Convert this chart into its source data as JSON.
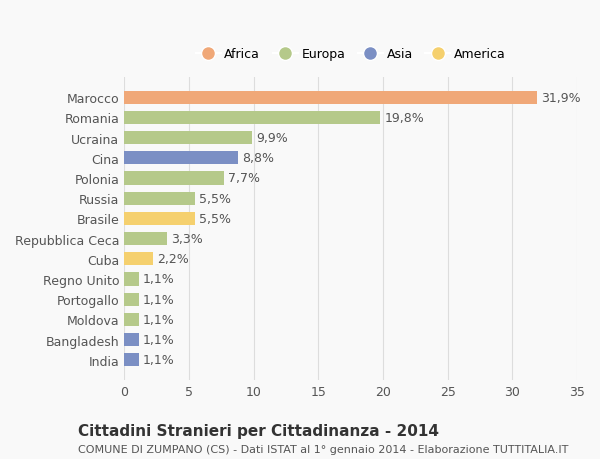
{
  "categories": [
    "Marocco",
    "Romania",
    "Ucraina",
    "Cina",
    "Polonia",
    "Russia",
    "Brasile",
    "Repubblica Ceca",
    "Cuba",
    "Regno Unito",
    "Portogallo",
    "Moldova",
    "Bangladesh",
    "India"
  ],
  "values": [
    31.9,
    19.8,
    9.9,
    8.8,
    7.7,
    5.5,
    5.5,
    3.3,
    2.2,
    1.1,
    1.1,
    1.1,
    1.1,
    1.1
  ],
  "labels": [
    "31,9%",
    "19,8%",
    "9,9%",
    "8,8%",
    "7,7%",
    "5,5%",
    "5,5%",
    "3,3%",
    "2,2%",
    "1,1%",
    "1,1%",
    "1,1%",
    "1,1%",
    "1,1%"
  ],
  "bar_colors": [
    "#f0a878",
    "#b5c98a",
    "#b5c98a",
    "#7b8fc4",
    "#b5c98a",
    "#b5c98a",
    "#f5d06e",
    "#b5c98a",
    "#f5d06e",
    "#b5c98a",
    "#b5c98a",
    "#b5c98a",
    "#7b8fc4",
    "#7b8fc4"
  ],
  "legend_labels": [
    "Africa",
    "Europa",
    "Asia",
    "America"
  ],
  "legend_colors": [
    "#f0a878",
    "#b5c98a",
    "#7b8fc4",
    "#f5d06e"
  ],
  "title": "Cittadini Stranieri per Cittadinanza - 2014",
  "subtitle": "COMUNE DI ZUMPANO (CS) - Dati ISTAT al 1° gennaio 2014 - Elaborazione TUTTITALIA.IT",
  "xlim": [
    0,
    35
  ],
  "xticks": [
    0,
    5,
    10,
    15,
    20,
    25,
    30,
    35
  ],
  "background_color": "#f9f9f9",
  "grid_color": "#dddddd",
  "bar_height": 0.65,
  "label_fontsize": 9,
  "tick_fontsize": 9,
  "title_fontsize": 11,
  "subtitle_fontsize": 8
}
